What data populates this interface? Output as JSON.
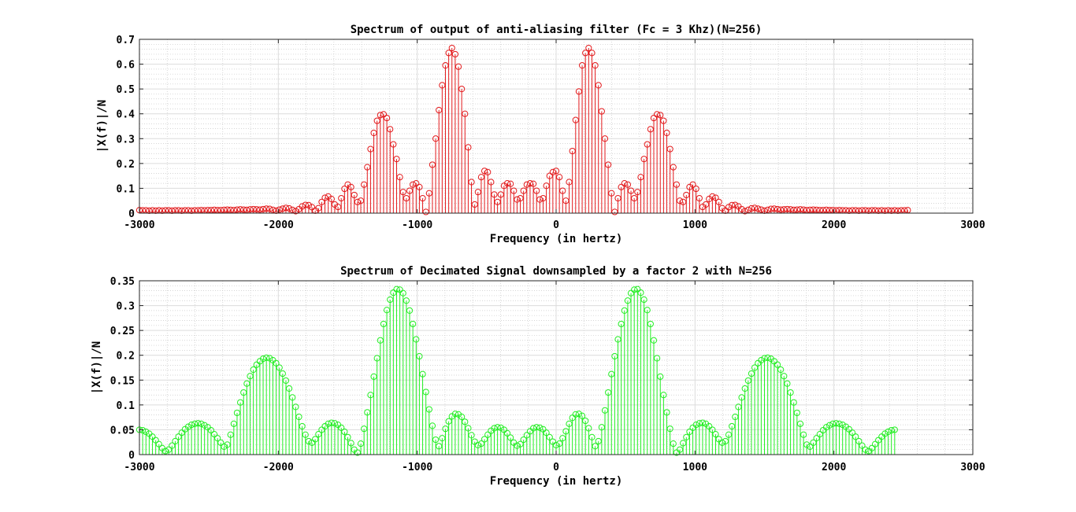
{
  "chart_data": [
    {
      "type": "stem",
      "title": "Spectrum of output of anti-aliasing filter (Fc = 3 Khz)(N=256)",
      "xlabel": "Frequency (in hertz)",
      "ylabel": "|X(f)|/N",
      "xlim": [
        -3000,
        3000
      ],
      "ylim": [
        0,
        0.7
      ],
      "xticks": [
        -3000,
        -2000,
        -1000,
        0,
        1000,
        2000,
        3000
      ],
      "yticks": [
        0,
        0.1,
        0.2,
        0.3,
        0.4,
        0.5,
        0.6,
        0.7
      ],
      "ytick_labels": [
        "0",
        "0.1",
        "0.2",
        "0.3",
        "0.4",
        "0.5",
        "0.6",
        "0.7"
      ],
      "grid": true,
      "minor_grid": true,
      "color": "#e31a1c",
      "x_step": 23.4375,
      "series": [
        {
          "x_start": -3000,
          "values": [
            0.012,
            0.011,
            0.011,
            0.01,
            0.011,
            0.01,
            0.011,
            0.01,
            0.011,
            0.011,
            0.01,
            0.011,
            0.011,
            0.01,
            0.011,
            0.011,
            0.01,
            0.011,
            0.011,
            0.012,
            0.011,
            0.012,
            0.012,
            0.013,
            0.012,
            0.012,
            0.013,
            0.014,
            0.013,
            0.012,
            0.014,
            0.015,
            0.014,
            0.013,
            0.015,
            0.016,
            0.015,
            0.014,
            0.016,
            0.018,
            0.017,
            0.013,
            0.01,
            0.014,
            0.018,
            0.021,
            0.019,
            0.013,
            0.008,
            0.016,
            0.027,
            0.033,
            0.032,
            0.024,
            0.01,
            0.02,
            0.045,
            0.062,
            0.067,
            0.057,
            0.035,
            0.025,
            0.06,
            0.098,
            0.115,
            0.105,
            0.073,
            0.045,
            0.05,
            0.115,
            0.185,
            0.258,
            0.323,
            0.372,
            0.395,
            0.398,
            0.383,
            0.338,
            0.277,
            0.218,
            0.145,
            0.085,
            0.06,
            0.09,
            0.115,
            0.12,
            0.105,
            0.06,
            0.005,
            0.08,
            0.195,
            0.3,
            0.415,
            0.515,
            0.595,
            0.645,
            0.665,
            0.64,
            0.59,
            0.5,
            0.4,
            0.265,
            0.125,
            0.035,
            0.085,
            0.145,
            0.17,
            0.165,
            0.125,
            0.075,
            0.045,
            0.075,
            0.11,
            0.12,
            0.118,
            0.09,
            0.055,
            0.06,
            0.09,
            0.115,
            0.12,
            0.118,
            0.09,
            0.055,
            0.06,
            0.11,
            0.15,
            0.165,
            0.17,
            0.145,
            0.09,
            0.05,
            0.125,
            0.25,
            0.375,
            0.49,
            0.595,
            0.645,
            0.665,
            0.645,
            0.595,
            0.515,
            0.41,
            0.3,
            0.195,
            0.08,
            0.005,
            0.06,
            0.105,
            0.12,
            0.115,
            0.09,
            0.06,
            0.085,
            0.145,
            0.218,
            0.277,
            0.338,
            0.383,
            0.398,
            0.395,
            0.372,
            0.323,
            0.258,
            0.185,
            0.115,
            0.05,
            0.045,
            0.073,
            0.105,
            0.115,
            0.098,
            0.06,
            0.025,
            0.035,
            0.057,
            0.067,
            0.062,
            0.045,
            0.02,
            0.01,
            0.024,
            0.032,
            0.033,
            0.027,
            0.016,
            0.008,
            0.013,
            0.019,
            0.021,
            0.018,
            0.014,
            0.01,
            0.013,
            0.017,
            0.018,
            0.016,
            0.014,
            0.015,
            0.016,
            0.015,
            0.013,
            0.014,
            0.015,
            0.014,
            0.012,
            0.013,
            0.014,
            0.013,
            0.012,
            0.012,
            0.013,
            0.012,
            0.012,
            0.011,
            0.012,
            0.011,
            0.011,
            0.01,
            0.011,
            0.011,
            0.01,
            0.011,
            0.011,
            0.01,
            0.011,
            0.011,
            0.01,
            0.011,
            0.01,
            0.011,
            0.01,
            0.011,
            0.01,
            0.011,
            0.011,
            0.012
          ]
        }
      ]
    },
    {
      "type": "stem",
      "title": "Spectrum of Decimated Signal downsampled by a factor 2 with N=256",
      "xlabel": "Frequency (in hertz)",
      "ylabel": "|X(f)|/N",
      "xlim": [
        -3000,
        3000
      ],
      "ylim": [
        0,
        0.35
      ],
      "xticks": [
        -3000,
        -2000,
        -1000,
        0,
        1000,
        2000,
        3000
      ],
      "yticks": [
        0,
        0.05,
        0.1,
        0.15,
        0.2,
        0.25,
        0.3,
        0.35
      ],
      "ytick_labels": [
        "0",
        "0.05",
        "0.1",
        "0.15",
        "0.2",
        "0.25",
        "0.3",
        "0.35"
      ],
      "grid": true,
      "minor_grid": true,
      "color": "#22ee22",
      "x_step": 23.4375,
      "series": [
        {
          "x_start": -3000,
          "values": [
            0.05,
            0.049,
            0.046,
            0.042,
            0.036,
            0.029,
            0.021,
            0.013,
            0.007,
            0.01,
            0.018,
            0.027,
            0.036,
            0.044,
            0.051,
            0.056,
            0.06,
            0.062,
            0.063,
            0.062,
            0.059,
            0.055,
            0.049,
            0.041,
            0.033,
            0.024,
            0.016,
            0.02,
            0.04,
            0.062,
            0.084,
            0.105,
            0.125,
            0.143,
            0.158,
            0.171,
            0.181,
            0.188,
            0.193,
            0.195,
            0.194,
            0.19,
            0.184,
            0.175,
            0.163,
            0.149,
            0.133,
            0.115,
            0.096,
            0.076,
            0.057,
            0.04,
            0.027,
            0.024,
            0.031,
            0.041,
            0.05,
            0.057,
            0.062,
            0.064,
            0.063,
            0.06,
            0.054,
            0.046,
            0.035,
            0.023,
            0.01,
            0.004,
            0.022,
            0.052,
            0.085,
            0.12,
            0.157,
            0.194,
            0.23,
            0.263,
            0.291,
            0.312,
            0.326,
            0.333,
            0.332,
            0.325,
            0.31,
            0.29,
            0.263,
            0.232,
            0.198,
            0.162,
            0.126,
            0.091,
            0.058,
            0.03,
            0.017,
            0.033,
            0.052,
            0.067,
            0.077,
            0.082,
            0.081,
            0.076,
            0.066,
            0.053,
            0.039,
            0.026,
            0.019,
            0.022,
            0.031,
            0.04,
            0.048,
            0.053,
            0.055,
            0.054,
            0.05,
            0.043,
            0.034,
            0.024,
            0.018,
            0.021,
            0.03,
            0.039,
            0.047,
            0.053,
            0.055,
            0.054,
            0.051,
            0.044,
            0.035,
            0.026,
            0.019,
            0.022,
            0.033,
            0.047,
            0.062,
            0.074,
            0.081,
            0.082,
            0.078,
            0.068,
            0.053,
            0.035,
            0.017,
            0.027,
            0.055,
            0.089,
            0.125,
            0.162,
            0.198,
            0.232,
            0.263,
            0.29,
            0.31,
            0.325,
            0.332,
            0.333,
            0.326,
            0.312,
            0.291,
            0.263,
            0.23,
            0.194,
            0.157,
            0.12,
            0.085,
            0.052,
            0.022,
            0.004,
            0.01,
            0.023,
            0.035,
            0.046,
            0.054,
            0.06,
            0.063,
            0.064,
            0.062,
            0.057,
            0.05,
            0.041,
            0.031,
            0.024,
            0.027,
            0.04,
            0.057,
            0.076,
            0.096,
            0.115,
            0.133,
            0.149,
            0.163,
            0.175,
            0.184,
            0.19,
            0.194,
            0.195,
            0.193,
            0.188,
            0.181,
            0.171,
            0.158,
            0.143,
            0.125,
            0.105,
            0.084,
            0.062,
            0.04,
            0.02,
            0.016,
            0.024,
            0.033,
            0.041,
            0.049,
            0.055,
            0.059,
            0.062,
            0.063,
            0.062,
            0.06,
            0.056,
            0.051,
            0.044,
            0.036,
            0.027,
            0.018,
            0.01,
            0.007,
            0.013,
            0.021,
            0.029,
            0.036,
            0.042,
            0.046,
            0.049,
            0.05
          ]
        }
      ]
    }
  ]
}
